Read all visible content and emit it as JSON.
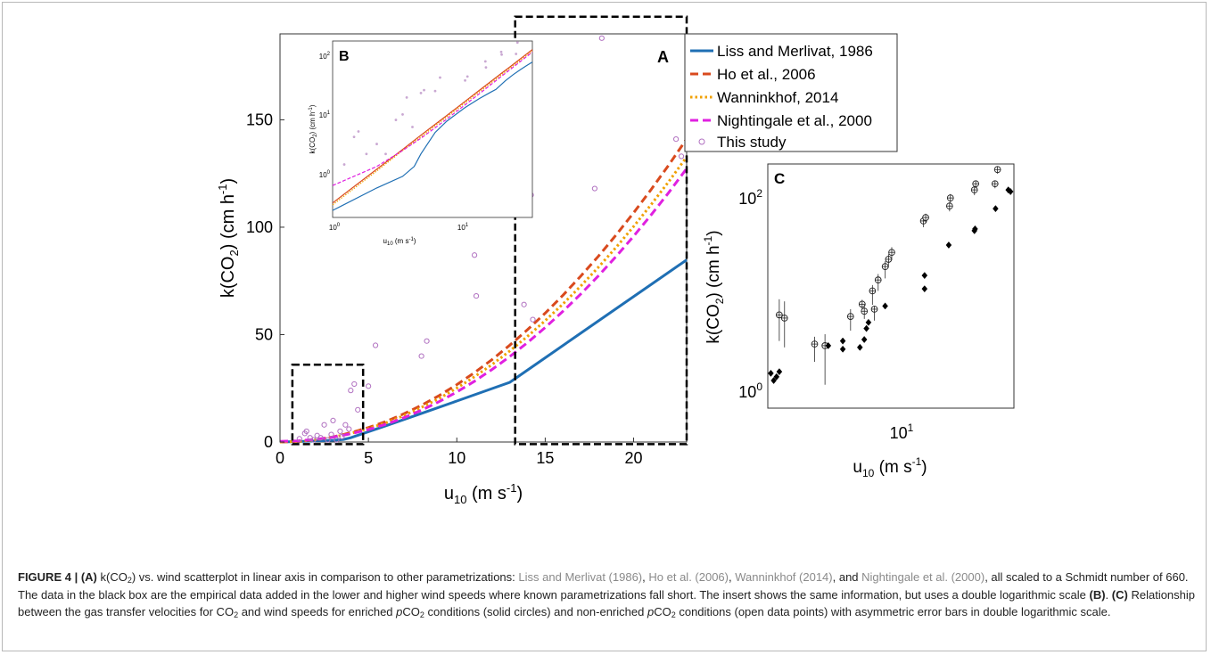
{
  "colors": {
    "liss": "#1f6fb4",
    "ho": "#d94a1e",
    "wann": "#f0a000",
    "night": "#e020e0",
    "obs": "#b070c0",
    "box": "#000000"
  },
  "chart_data": [
    {
      "id": "A",
      "type": "line",
      "panel_label": "A",
      "xlabel": "u10 (m s-1)",
      "ylabel": "k(CO2) (cm h-1)",
      "xlim": [
        0,
        23
      ],
      "ylim": [
        0,
        190
      ],
      "xticks": [
        "0",
        "5",
        "10",
        "15",
        "20"
      ],
      "yticks": [
        "0",
        "50",
        "100",
        "150"
      ],
      "xtick_values": [
        0,
        5,
        10,
        15,
        20
      ],
      "ytick_values": [
        0,
        50,
        100,
        150
      ],
      "legend_position": "top-right, outside",
      "series": [
        {
          "name": "Liss and Merlivat, 1986",
          "style": "solid",
          "color_key": "liss",
          "x": [
            0,
            1,
            2,
            3,
            3.6,
            4,
            5,
            6,
            8,
            10,
            12,
            13,
            15,
            17,
            19,
            21,
            23
          ],
          "y": [
            0,
            0.2,
            0.5,
            0.8,
            1.2,
            2,
            4.8,
            7.6,
            13.3,
            19.1,
            24.9,
            27.8,
            39.2,
            50.6,
            62.0,
            73.4,
            84.8
          ]
        },
        {
          "name": "Ho et al., 2006",
          "style": "dashed",
          "color_key": "ho",
          "x": [
            0,
            1,
            2,
            3,
            4,
            5,
            6,
            7,
            8,
            9,
            10,
            11,
            12,
            13,
            14,
            15,
            16,
            17,
            18,
            19,
            20,
            21,
            22,
            23
          ],
          "y": [
            0,
            0.27,
            1.07,
            2.4,
            4.3,
            6.7,
            9.6,
            13.1,
            17.1,
            21.6,
            26.7,
            32.3,
            38.4,
            45.1,
            52.3,
            60.0,
            68.3,
            77.1,
            86.4,
            96.3,
            106.7,
            117.6,
            129.1,
            141.1
          ]
        },
        {
          "name": "Wanninkhof, 2014",
          "style": "dotted",
          "color_key": "wann",
          "x": [
            0,
            1,
            2,
            3,
            4,
            5,
            6,
            7,
            8,
            9,
            10,
            11,
            12,
            13,
            14,
            15,
            16,
            17,
            18,
            19,
            20,
            21,
            22,
            23
          ],
          "y": [
            0,
            0.25,
            1.0,
            2.3,
            4.0,
            6.3,
            9.0,
            12.3,
            16.1,
            20.3,
            25.1,
            30.4,
            36.1,
            42.4,
            49.2,
            56.5,
            64.2,
            72.5,
            81.3,
            90.5,
            100.3,
            110.6,
            121.4,
            132.7
          ]
        },
        {
          "name": "Nightingale et al., 2000",
          "style": "dashed",
          "color_key": "night",
          "x": [
            0,
            1,
            2,
            3,
            4,
            5,
            6,
            7,
            8,
            9,
            10,
            11,
            12,
            13,
            14,
            15,
            16,
            17,
            18,
            19,
            20,
            21,
            22,
            23
          ],
          "y": [
            0.33,
            0.55,
            1.2,
            2.3,
            3.8,
            5.8,
            8.3,
            11.3,
            14.8,
            18.8,
            23.3,
            28.3,
            33.8,
            39.8,
            46.3,
            53.3,
            60.8,
            68.8,
            77.3,
            86.3,
            95.8,
            105.8,
            116.3,
            127.3
          ]
        },
        {
          "name": "This study",
          "style": "markers",
          "color_key": "obs",
          "x": [
            1.1,
            1.4,
            1.5,
            1.7,
            1.9,
            2.1,
            2.3,
            2.5,
            2.7,
            2.9,
            3.0,
            3.2,
            3.4,
            3.5,
            3.7,
            3.9,
            4.0,
            4.2,
            4.4,
            5.0,
            5.4,
            8.0,
            8.3,
            11.0,
            11.1,
            13.8,
            14.1,
            14.2,
            14.3,
            17.8,
            18.2,
            22.4,
            22.7
          ],
          "y": [
            1.5,
            4.0,
            5.0,
            2.0,
            1.0,
            3.0,
            2.0,
            8.0,
            1.0,
            3.5,
            10.0,
            1.0,
            5.0,
            2.5,
            8.0,
            6.0,
            24.0,
            27.0,
            15.0,
            26.0,
            45.0,
            40.0,
            47.0,
            87.0,
            68.0,
            64.0,
            128.0,
            115.0,
            57.0,
            118.0,
            188.0,
            141.0,
            133.0
          ]
        }
      ],
      "boxes": [
        {
          "x": [
            0.7,
            4.7
          ],
          "y": [
            -1,
            36
          ]
        },
        {
          "x": [
            13.3,
            23.0
          ],
          "y": [
            -1,
            198
          ]
        }
      ]
    },
    {
      "id": "B",
      "type": "line",
      "panel_label": "B",
      "scale": "log-log",
      "xlabel": "u10 (m s-1)",
      "ylabel": "k(CO2) (cm h-1)",
      "xlim": [
        1,
        23
      ],
      "ylim": [
        0.15,
        200
      ],
      "xticks": [
        "10^0",
        "10^1"
      ],
      "yticks": [
        "10^0",
        "10^1",
        "10^2"
      ],
      "series": [
        {
          "style": "solid",
          "color_key": "liss",
          "x": [
            1,
            2,
            3,
            3.6,
            4,
            5,
            6,
            8,
            10,
            12,
            13,
            15,
            17,
            19,
            21,
            23
          ],
          "y": [
            0.2,
            0.5,
            0.8,
            1.2,
            2,
            4.8,
            7.6,
            13.3,
            19.1,
            24.9,
            27.8,
            39.2,
            50.6,
            62.0,
            73.4,
            84.8
          ]
        },
        {
          "style": "solid",
          "color_key": "ho",
          "x": [
            1,
            2,
            3,
            4,
            5,
            6,
            8,
            10,
            12,
            14,
            16,
            18,
            20,
            23
          ],
          "y": [
            0.27,
            1.07,
            2.4,
            4.3,
            6.7,
            9.6,
            17.1,
            26.7,
            38.4,
            52.3,
            68.3,
            86.4,
            106.7,
            141.1
          ]
        },
        {
          "style": "dotted",
          "color_key": "wann",
          "x": [
            1,
            2,
            3,
            4,
            5,
            6,
            8,
            10,
            12,
            14,
            16,
            18,
            20,
            23
          ],
          "y": [
            0.25,
            1.0,
            2.3,
            4.0,
            6.3,
            9.0,
            16.1,
            25.1,
            36.1,
            49.2,
            64.2,
            81.3,
            100.3,
            132.7
          ]
        },
        {
          "style": "dashed",
          "color_key": "night",
          "x": [
            1,
            2,
            3,
            4,
            5,
            6,
            8,
            10,
            12,
            14,
            16,
            18,
            20,
            23
          ],
          "y": [
            0.55,
            1.2,
            2.3,
            3.8,
            5.8,
            8.3,
            14.8,
            23.3,
            33.8,
            46.3,
            60.8,
            77.3,
            95.8,
            127.3
          ]
        },
        {
          "style": "markers",
          "color_key": "obs",
          "x": [
            1.2,
            1.4,
            1.5,
            1.7,
            2.0,
            2.3,
            2.7,
            3.0,
            3.2,
            3.5,
            4.0,
            4.2,
            5.0,
            5.4,
            8.0,
            8.3,
            11.0,
            11.1,
            14.1,
            14.2,
            17.8,
            18.2
          ],
          "y": [
            1.3,
            4.0,
            5.0,
            2.0,
            3.0,
            2.0,
            8.0,
            10.0,
            20.0,
            6.0,
            24.0,
            27.0,
            26.0,
            45.0,
            40.0,
            47.0,
            87.0,
            68.0,
            128.0,
            115.0,
            118.0,
            188.0
          ]
        }
      ]
    },
    {
      "id": "C",
      "type": "scatter",
      "panel_label": "C",
      "scale": "log-log",
      "xlabel": "u10 (m s-1)",
      "ylabel": "k(CO2) (cm h-1)",
      "xlim": [
        1.5,
        22
      ],
      "ylim": [
        0.5,
        230
      ],
      "xticks": [
        "10^1"
      ],
      "yticks": [
        "10^0",
        "10^2"
      ],
      "series": [
        {
          "name": "enriched",
          "marker": "filled-diamond",
          "x": [
            1.55,
            1.6,
            1.65,
            1.7,
            2.9,
            3.4,
            3.4,
            4.1,
            4.3,
            4.4,
            4.5,
            5.4,
            8.3,
            8.3,
            10.8,
            14.3,
            14.4,
            18.0,
            20.7,
            21.2
          ],
          "y": [
            1.2,
            1.0,
            1.1,
            1.25,
            2.4,
            2.2,
            2.7,
            2.3,
            2.8,
            3.7,
            4.3,
            6.5,
            10.0,
            14.0,
            30.0,
            43.0,
            45.0,
            75.0,
            120.0,
            115.0
          ]
        },
        {
          "name": "non-enriched",
          "marker": "open-circle-cross",
          "x": [
            1.7,
            1.8,
            2.5,
            2.8,
            3.7,
            4.2,
            4.3,
            4.7,
            4.8,
            5.0,
            5.4,
            5.6,
            5.8,
            8.2,
            8.4,
            10.9,
            11.0,
            14.3,
            14.5,
            17.9,
            18.4
          ],
          "y": [
            5.2,
            4.8,
            2.5,
            2.4,
            5.0,
            6.8,
            5.7,
            9.5,
            6.0,
            12.5,
            17.5,
            21.0,
            25.0,
            55.0,
            60.0,
            80.0,
            98.0,
            120.0,
            140.0,
            140.0,
            200.0
          ],
          "err_lo": [
            2.5,
            2.5,
            0.9,
            1.5,
            1.5,
            1.2,
            1.0,
            2.8,
            1.5,
            3.0,
            4.5,
            4.0,
            4.5,
            8.0,
            8.0,
            10.0,
            12.0,
            15.0,
            15.0,
            15.0,
            20.0
          ],
          "err_hi": [
            2.5,
            2.5,
            0.5,
            0.8,
            1.0,
            0.8,
            1.0,
            1.5,
            0.5,
            2.0,
            2.5,
            3.0,
            3.5,
            6.0,
            6.0,
            8.0,
            10.0,
            12.0,
            12.0,
            12.0,
            15.0
          ]
        }
      ]
    }
  ],
  "caption": {
    "fig": "FIGURE 4 |",
    "a_tag": "(A)",
    "t1": "k(CO",
    "t1sub": "2",
    "t2": ") vs. wind scatterplot in linear axis in comparison to other parametrizations:",
    "ref1": "Liss and Merlivat (1986)",
    "sep1": ",",
    "ref2": "Ho et al. (2006)",
    "sep2": ",",
    "ref3": "Wanninkhof (2014)",
    "sep3": ", and",
    "ref4": "Nightingale et al. (2000)",
    "t3": ", all scaled to a Schmidt number of 660. The data in the black box are the empirical data added in the lower and higher wind speeds where known parametrizations fall short. The insert shows the same information, but uses a double logarithmic scale",
    "b_tag": "(B)",
    "t4": ".",
    "c_tag": "(C)",
    "t5": "Relationship between the gas transfer velocities for CO",
    "t5sub": "2",
    "t6": "and wind speeds for enriched",
    "p1": "p",
    "t7": "CO",
    "t7sub": "2",
    "t8": "conditions (solid circles) and non-enriched",
    "p2": "p",
    "t9": "CO",
    "t9sub": "2",
    "t10": "conditions (open data points) with asymmetric error bars in double logarithmic scale."
  }
}
